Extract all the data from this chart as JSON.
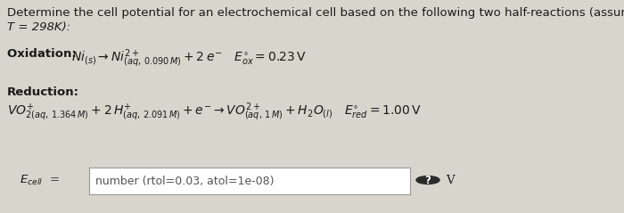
{
  "background_color": "#d8d5cc",
  "font_color": "#1a1a1a",
  "title_line1": "Determine the cell potential for an electrochemical cell based on the following two half-reactions (assume",
  "title_line2": "T = 298K):",
  "input_placeholder": "number (rtol=0.03, atol=1e-08)",
  "box_bg": "#ffffff",
  "box_border": "#999999",
  "title_fontsize": 9.5,
  "label_fontsize": 9.5,
  "eq_fontsize": 10
}
